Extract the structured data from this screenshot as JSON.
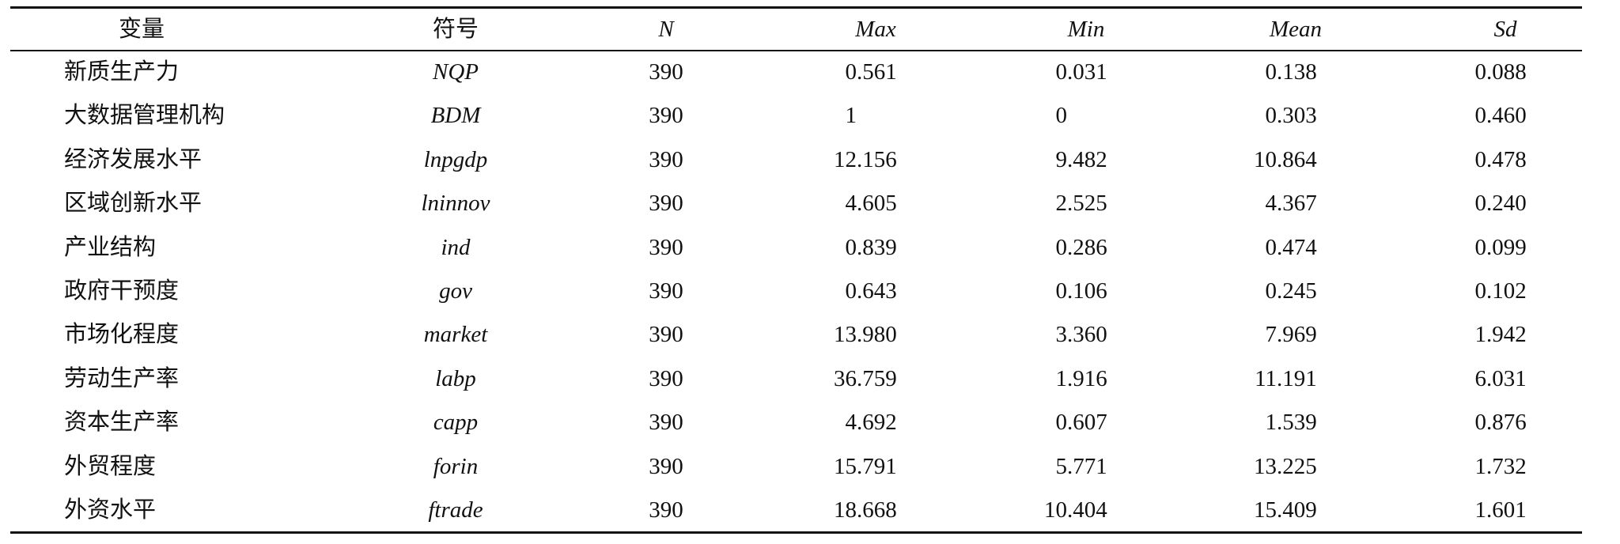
{
  "table": {
    "header": [
      "变量",
      "符号",
      "N",
      "Max",
      "Min",
      "Mean",
      "Sd"
    ],
    "rows": [
      [
        "新质生产力",
        "NQP",
        "390",
        "0.561",
        "0.031",
        "0.138",
        "0.088"
      ],
      [
        "大数据管理机构",
        "BDM",
        "390",
        "1",
        "0",
        "0.303",
        "0.460"
      ],
      [
        "经济发展水平",
        "lnpgdp",
        "390",
        "12.156",
        "9.482",
        "10.864",
        "0.478"
      ],
      [
        "区域创新水平",
        "lninnov",
        "390",
        "4.605",
        "2.525",
        "4.367",
        "0.240"
      ],
      [
        "产业结构",
        "ind",
        "390",
        "0.839",
        "0.286",
        "0.474",
        "0.099"
      ],
      [
        "政府干预度",
        "gov",
        "390",
        "0.643",
        "0.106",
        "0.245",
        "0.102"
      ],
      [
        "市场化程度",
        "market",
        "390",
        "13.980",
        "3.360",
        "7.969",
        "1.942"
      ],
      [
        "劳动生产率",
        "labp",
        "390",
        "36.759",
        "1.916",
        "11.191",
        "6.031"
      ],
      [
        "资本生产率",
        "capp",
        "390",
        "4.692",
        "0.607",
        "1.539",
        "0.876"
      ],
      [
        "外贸程度",
        "forin",
        "390",
        "15.791",
        "5.771",
        "13.225",
        "1.732"
      ],
      [
        "外资水平",
        "ftrade",
        "390",
        "18.668",
        "10.404",
        "15.409",
        "1.601"
      ]
    ]
  }
}
